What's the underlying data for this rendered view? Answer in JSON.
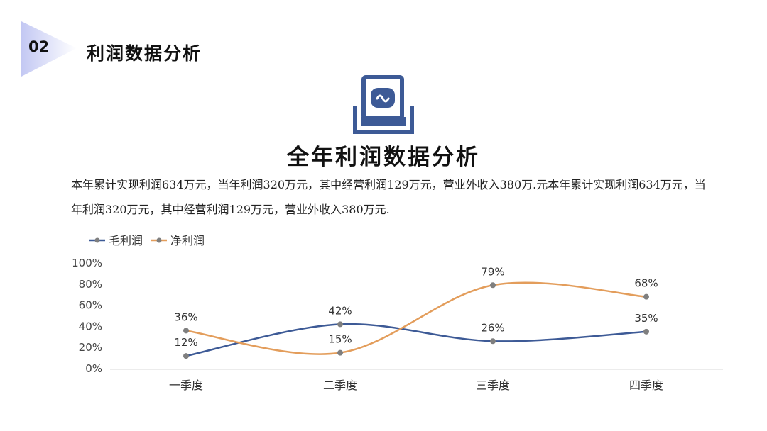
{
  "section": {
    "number": "02",
    "title": "利润数据分析"
  },
  "main_title": "全年利润数据分析",
  "description": "本年累计实现利润634万元，当年利润320万元，其中经营利润129万元，营业外收入380万.元本年累计实现利润634万元，当年利润320万元，其中经营利润129万元，营业外收入380万元.",
  "icon": "document-icon",
  "colors": {
    "accent": "#3d5a96",
    "series1": "#3d5a96",
    "series2": "#e39d5b",
    "marker": "#7f7f7f",
    "triangle_start": "#c9cdf5",
    "triangle_end": "#ffffff"
  },
  "chart_data": {
    "type": "line",
    "categories": [
      "一季度",
      "二季度",
      "三季度",
      "四季度"
    ],
    "series": [
      {
        "name": "毛利润",
        "values": [
          12,
          42,
          26,
          35
        ],
        "color": "#3d5a96"
      },
      {
        "name": "净利润",
        "values": [
          36,
          15,
          79,
          68
        ],
        "color": "#e39d5b"
      }
    ],
    "y_ticks": [
      "0%",
      "20%",
      "40%",
      "60%",
      "80%",
      "100%"
    ],
    "ylim": [
      0,
      100
    ],
    "unit": "%",
    "smooth": true,
    "grid": false,
    "legend": "top-left"
  }
}
